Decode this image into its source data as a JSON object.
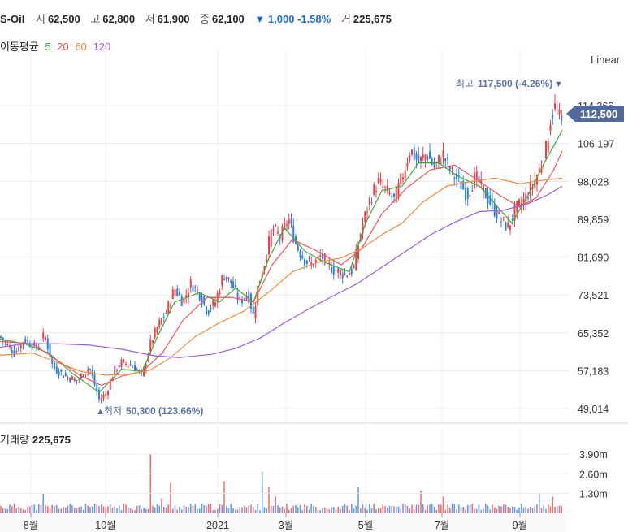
{
  "header": {
    "name": "S-Oil",
    "open_label": "시",
    "open": "62,500",
    "high_label": "고",
    "high": "62,800",
    "low_label": "저",
    "low": "61,900",
    "close_label": "종",
    "close": "62,100",
    "change_arrow": "▼",
    "change": "1,000",
    "change_pct": "-1.58%",
    "volume_label": "거",
    "volume": "225,675"
  },
  "ma_legend": {
    "label": "이동평균",
    "periods": [
      {
        "label": "5",
        "color": "#3cab3c"
      },
      {
        "label": "20",
        "color": "#e8575c"
      },
      {
        "label": "60",
        "color": "#ef8a3a"
      },
      {
        "label": "120",
        "color": "#9b5be0"
      }
    ]
  },
  "scale_mode": "Linear",
  "colors": {
    "up": "#e8424b",
    "down": "#2f7fe0",
    "price_tag": "#556a9c",
    "annot": "#5a70a8"
  },
  "chart_data": {
    "type": "candlestick",
    "y_ticks": [
      "114,366",
      "106,197",
      "98,028",
      "89,859",
      "81,690",
      "73,521",
      "65,352",
      "57,183",
      "49,014"
    ],
    "y_tick_values": [
      114366,
      106197,
      98028,
      89859,
      81690,
      73521,
      65352,
      57183,
      49014
    ],
    "x_ticks": [
      "8월",
      "10월",
      "2021",
      "3월",
      "5월",
      "7월",
      "9월"
    ],
    "current_price": "112,500",
    "high_annotation": {
      "label": "최고",
      "value": "117,500 (-4.26%)",
      "arrow": "▼"
    },
    "low_annotation": {
      "label": "최저",
      "value": "50,300 (123.66%)",
      "arrow": "▲"
    },
    "price_path": [
      [
        0,
        64500
      ],
      [
        18,
        61000
      ],
      [
        30,
        64000
      ],
      [
        45,
        62000
      ],
      [
        55,
        65000
      ],
      [
        65,
        58000
      ],
      [
        80,
        56000
      ],
      [
        95,
        55000
      ],
      [
        110,
        58000
      ],
      [
        122,
        51000
      ],
      [
        130,
        52000
      ],
      [
        140,
        57000
      ],
      [
        150,
        59000
      ],
      [
        165,
        58000
      ],
      [
        175,
        56000
      ],
      [
        185,
        63000
      ],
      [
        195,
        67000
      ],
      [
        205,
        70000
      ],
      [
        215,
        75000
      ],
      [
        225,
        72000
      ],
      [
        235,
        76000
      ],
      [
        245,
        74000
      ],
      [
        255,
        70000
      ],
      [
        265,
        72000
      ],
      [
        275,
        78000
      ],
      [
        285,
        76000
      ],
      [
        295,
        72000
      ],
      [
        305,
        74000
      ],
      [
        312,
        69000
      ],
      [
        318,
        76000
      ],
      [
        325,
        80000
      ],
      [
        335,
        88000
      ],
      [
        345,
        86000
      ],
      [
        355,
        90000
      ],
      [
        365,
        84000
      ],
      [
        375,
        81000
      ],
      [
        385,
        80000
      ],
      [
        395,
        82000
      ],
      [
        410,
        79000
      ],
      [
        425,
        78000
      ],
      [
        435,
        79000
      ],
      [
        445,
        88000
      ],
      [
        455,
        94000
      ],
      [
        465,
        98000
      ],
      [
        475,
        96000
      ],
      [
        485,
        94000
      ],
      [
        495,
        99000
      ],
      [
        505,
        105000
      ],
      [
        515,
        102000
      ],
      [
        525,
        104000
      ],
      [
        535,
        101000
      ],
      [
        545,
        104000
      ],
      [
        555,
        100000
      ],
      [
        565,
        98000
      ],
      [
        575,
        95000
      ],
      [
        585,
        99000
      ],
      [
        595,
        96000
      ],
      [
        605,
        93000
      ],
      [
        615,
        90000
      ],
      [
        625,
        88000
      ],
      [
        635,
        92000
      ],
      [
        645,
        94000
      ],
      [
        655,
        97000
      ],
      [
        665,
        101000
      ],
      [
        672,
        105000
      ],
      [
        678,
        112000
      ],
      [
        683,
        114000
      ],
      [
        688,
        112000
      ],
      [
        692,
        110000
      ]
    ],
    "ma_paths": {
      "5": [
        [
          0,
          64000
        ],
        [
          30,
          63000
        ],
        [
          60,
          61000
        ],
        [
          90,
          56500
        ],
        [
          122,
          52500
        ],
        [
          150,
          57500
        ],
        [
          175,
          57000
        ],
        [
          195,
          65000
        ],
        [
          215,
          72000
        ],
        [
          245,
          74000
        ],
        [
          270,
          72000
        ],
        [
          290,
          75000
        ],
        [
          312,
          72000
        ],
        [
          330,
          81000
        ],
        [
          350,
          88000
        ],
        [
          375,
          83000
        ],
        [
          400,
          80500
        ],
        [
          430,
          78500
        ],
        [
          450,
          89000
        ],
        [
          470,
          96000
        ],
        [
          495,
          97000
        ],
        [
          515,
          102000
        ],
        [
          540,
          102000
        ],
        [
          565,
          99000
        ],
        [
          590,
          97000
        ],
        [
          610,
          93000
        ],
        [
          630,
          89000
        ],
        [
          650,
          95000
        ],
        [
          670,
          102000
        ],
        [
          692,
          109000
        ]
      ],
      "20": [
        [
          0,
          63500
        ],
        [
          40,
          63000
        ],
        [
          70,
          59500
        ],
        [
          100,
          56000
        ],
        [
          125,
          54000
        ],
        [
          150,
          56000
        ],
        [
          175,
          57000
        ],
        [
          200,
          61000
        ],
        [
          225,
          68000
        ],
        [
          255,
          73000
        ],
        [
          285,
          73000
        ],
        [
          312,
          72000
        ],
        [
          335,
          80000
        ],
        [
          360,
          85500
        ],
        [
          390,
          83000
        ],
        [
          420,
          80000
        ],
        [
          445,
          83500
        ],
        [
          470,
          91000
        ],
        [
          500,
          96500
        ],
        [
          530,
          100500
        ],
        [
          560,
          101500
        ],
        [
          590,
          98000
        ],
        [
          615,
          95000
        ],
        [
          640,
          92500
        ],
        [
          660,
          94500
        ],
        [
          680,
          100000
        ],
        [
          692,
          104500
        ]
      ],
      "60": [
        [
          0,
          60500
        ],
        [
          40,
          61000
        ],
        [
          70,
          59000
        ],
        [
          100,
          57000
        ],
        [
          130,
          56200
        ],
        [
          160,
          56500
        ],
        [
          185,
          57300
        ],
        [
          210,
          60000
        ],
        [
          240,
          64500
        ],
        [
          270,
          67500
        ],
        [
          300,
          70000
        ],
        [
          330,
          74000
        ],
        [
          360,
          78500
        ],
        [
          390,
          80500
        ],
        [
          420,
          81500
        ],
        [
          445,
          83500
        ],
        [
          470,
          86500
        ],
        [
          495,
          89000
        ],
        [
          520,
          93500
        ],
        [
          550,
          97000
        ],
        [
          580,
          98000
        ],
        [
          610,
          98700
        ],
        [
          640,
          97500
        ],
        [
          665,
          98200
        ],
        [
          692,
          98700
        ]
      ],
      "120": [
        [
          0,
          62200
        ],
        [
          30,
          63000
        ],
        [
          70,
          63000
        ],
        [
          110,
          62700
        ],
        [
          150,
          61800
        ],
        [
          190,
          60400
        ],
        [
          220,
          60000
        ],
        [
          260,
          60700
        ],
        [
          290,
          62000
        ],
        [
          320,
          64200
        ],
        [
          350,
          67500
        ],
        [
          380,
          70500
        ],
        [
          410,
          73300
        ],
        [
          440,
          76000
        ],
        [
          470,
          79500
        ],
        [
          500,
          83000
        ],
        [
          530,
          86500
        ],
        [
          560,
          89200
        ],
        [
          590,
          91500
        ],
        [
          620,
          91800
        ],
        [
          650,
          93200
        ],
        [
          675,
          95200
        ],
        [
          692,
          97000
        ]
      ]
    },
    "volume": {
      "label": "거래량",
      "value": "225,675",
      "y_ticks": [
        "3.90m",
        "2.60m",
        "1.30m"
      ],
      "y_tick_values": [
        3900000,
        2600000,
        1300000
      ],
      "spikes": [
        [
          52,
          1300000
        ],
        [
          185,
          3900000
        ],
        [
          198,
          1000000
        ],
        [
          210,
          2000000
        ],
        [
          275,
          2100000
        ],
        [
          322,
          2700000
        ],
        [
          330,
          1700000
        ],
        [
          340,
          1100000
        ],
        [
          440,
          1700000
        ],
        [
          519,
          1500000
        ],
        [
          545,
          1100000
        ],
        [
          665,
          1300000
        ],
        [
          680,
          1100000
        ]
      ],
      "typical": 500000
    }
  }
}
